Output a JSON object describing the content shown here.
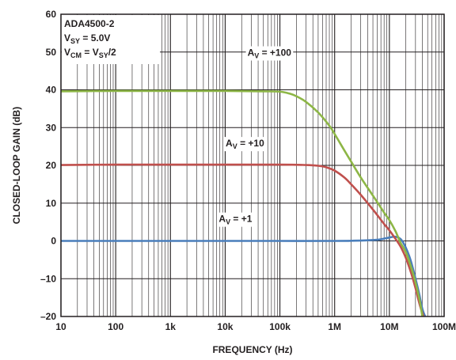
{
  "chart_data": {
    "type": "line",
    "xscale": "log",
    "xlim": [
      10,
      100000000
    ],
    "ylim": [
      -20,
      60
    ],
    "xlabel": "FREQUENCY (Hz)",
    "ylabel": "CLOSED-LOOP GAIN (dB)",
    "xticks": [
      {
        "v": 10,
        "label": "10"
      },
      {
        "v": 100,
        "label": "100"
      },
      {
        "v": 1000,
        "label": "1k"
      },
      {
        "v": 10000,
        "label": "10k"
      },
      {
        "v": 100000,
        "label": "100k"
      },
      {
        "v": 1000000,
        "label": "1M"
      },
      {
        "v": 10000000,
        "label": "10M"
      },
      {
        "v": 100000000,
        "label": "100M"
      }
    ],
    "yticks": [
      {
        "v": -20,
        "label": "–20"
      },
      {
        "v": -10,
        "label": "–10"
      },
      {
        "v": 0,
        "label": "0"
      },
      {
        "v": 10,
        "label": "10"
      },
      {
        "v": 20,
        "label": "20"
      },
      {
        "v": 30,
        "label": "30"
      },
      {
        "v": 40,
        "label": "40"
      },
      {
        "v": 50,
        "label": "50"
      },
      {
        "v": 60,
        "label": "60"
      }
    ],
    "grid": true,
    "conditions": {
      "part": "ADA4500-2",
      "vsy": {
        "main": "V",
        "sub": "SY",
        "rest": " = 5.0V"
      },
      "vcm": {
        "main": "V",
        "sub": "CM",
        "mid": " = V",
        "sub2": "SY",
        "rest": "/2"
      }
    },
    "series": [
      {
        "name": "A_V = +100",
        "label": {
          "main": "A",
          "sub": "V",
          "rest": " = +100"
        },
        "color": "#8db646",
        "x": [
          10,
          100,
          1000,
          10000,
          50000,
          100000,
          150000,
          200000,
          300000,
          500000,
          800000,
          1000000,
          1500000,
          2000000,
          3000000,
          5000000,
          8000000,
          10000000,
          13000000,
          16000000,
          20000000,
          25000000,
          30000000,
          36000000,
          40000000
        ],
        "y": [
          39.6,
          39.7,
          39.7,
          39.7,
          39.6,
          39.5,
          39.0,
          38.3,
          36.8,
          34.0,
          30.5,
          28.3,
          24.0,
          21.0,
          16.8,
          12.0,
          7.5,
          5.5,
          2.5,
          -0.5,
          -3.0,
          -7.0,
          -11.0,
          -16.0,
          -20.0
        ]
      },
      {
        "name": "A_V = +10",
        "label": {
          "main": "A",
          "sub": "V",
          "rest": " = +10"
        },
        "color": "#c0504d",
        "x": [
          10,
          100,
          1000,
          10000,
          100000,
          300000,
          500000,
          700000,
          1000000,
          1500000,
          2000000,
          3000000,
          5000000,
          8000000,
          10000000,
          13000000,
          16000000,
          20000000,
          25000000,
          30000000,
          36000000,
          42000000
        ],
        "y": [
          20.1,
          20.2,
          20.2,
          20.2,
          20.2,
          20.1,
          19.9,
          19.5,
          18.6,
          16.8,
          15.0,
          12.2,
          8.3,
          4.5,
          2.8,
          0.5,
          -1.5,
          -4.5,
          -8.5,
          -12.5,
          -17.0,
          -20.0
        ]
      },
      {
        "name": "A_V = +1",
        "label": {
          "main": "A",
          "sub": "V",
          "rest": " = +1"
        },
        "color": "#4a7ebb",
        "x": [
          10,
          100,
          1000,
          10000,
          100000,
          1000000,
          3000000,
          6000000,
          8000000,
          10000000,
          12000000,
          14000000,
          16000000,
          18000000,
          20000000,
          23000000,
          26000000,
          30000000,
          35000000,
          40000000,
          45000000
        ],
        "y": [
          0.0,
          0.0,
          0.0,
          0.0,
          0.0,
          0.0,
          0.1,
          0.3,
          0.6,
          0.9,
          1.1,
          1.0,
          0.5,
          -0.5,
          -1.8,
          -4.0,
          -6.5,
          -10.0,
          -14.0,
          -18.0,
          -20.0
        ]
      }
    ]
  }
}
